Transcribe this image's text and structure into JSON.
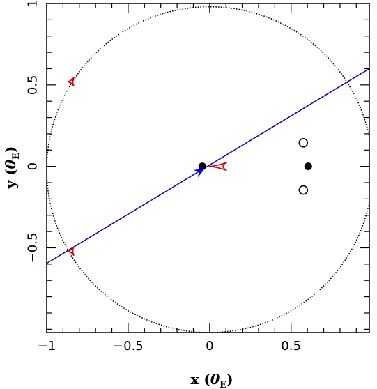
{
  "chart_data": {
    "type": "scatter",
    "title": "",
    "xlabel": "x (θE)",
    "ylabel": "y (θE)",
    "xlabel_parts": {
      "prefix": "x (",
      "symbol": "θ",
      "sub": "E",
      "suffix": ")"
    },
    "ylabel_parts": {
      "prefix": "y (",
      "symbol": "θ",
      "sub": "E",
      "suffix": ")"
    },
    "xlim": [
      -1,
      0.98
    ],
    "ylim": [
      -1.02,
      1
    ],
    "xticks": [
      {
        "value": -1,
        "label": "−1"
      },
      {
        "value": -0.5,
        "label": "−0.5"
      },
      {
        "value": 0,
        "label": "0"
      },
      {
        "value": 0.5,
        "label": "0.5"
      }
    ],
    "yticks": [
      {
        "value": -0.5,
        "label": "−0.5"
      },
      {
        "value": 0,
        "label": "0"
      },
      {
        "value": 0.5,
        "label": "0.5"
      },
      {
        "value": 1,
        "label": "1"
      }
    ],
    "grid": false,
    "critical_curve": {
      "style": "dotted",
      "color": "#000000",
      "radius": 1.0,
      "center": [
        0,
        -0.02
      ]
    },
    "caustics": [
      {
        "name": "central",
        "color": "#dd0000",
        "center": [
          0.04,
          0.0
        ],
        "size": 0.1
      },
      {
        "name": "upper",
        "color": "#dd0000",
        "center": [
          -0.85,
          0.52
        ],
        "size": 0.05
      },
      {
        "name": "lower",
        "color": "#dd0000",
        "center": [
          -0.85,
          -0.52
        ],
        "size": 0.05
      }
    ],
    "trajectory": {
      "color": "#0000bb",
      "x": [
        -1,
        0.98
      ],
      "y": [
        -0.595,
        0.6
      ]
    },
    "source": {
      "color": "#0000ff",
      "x": -0.06,
      "y": -0.03,
      "size": 0.05
    },
    "filled_points": [
      {
        "x": -0.045,
        "y": 0.0
      },
      {
        "x": 0.605,
        "y": 0.0
      }
    ],
    "open_points": [
      {
        "x": 0.575,
        "y": 0.145
      },
      {
        "x": 0.575,
        "y": -0.145
      }
    ]
  }
}
